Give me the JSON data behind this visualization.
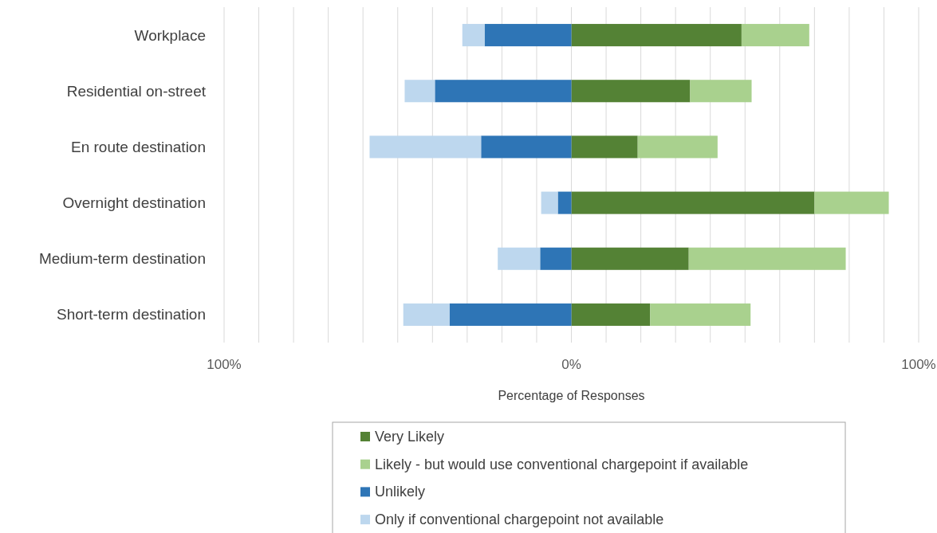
{
  "chart_data": {
    "type": "bar",
    "orientation": "horizontal",
    "stacked": true,
    "xlabel": "Percentage of Responses",
    "categories": [
      "Workplace",
      "Residential on-street",
      "En route destination",
      "Overnight destination",
      "Medium-term destination",
      "Short-term destination"
    ],
    "series": [
      {
        "name": "Very Likely",
        "color": "#548235",
        "values": [
          49,
          34.2,
          19.1,
          70,
          33.8,
          22.7
        ]
      },
      {
        "name": "Likely - but would use conventional chargepoint if available",
        "color": "#a9d18e",
        "values": [
          19.5,
          17.7,
          23,
          21.4,
          45.2,
          28.9
        ]
      },
      {
        "name": "Unlikely",
        "color": "#2e75b6",
        "values": [
          -25,
          -39.3,
          -26,
          -3.9,
          -9,
          -35.1
        ]
      },
      {
        "name": "Only if conventional chargepoint not available",
        "color": "#bdd7ee",
        "values": [
          -6.4,
          -8.7,
          -32.1,
          -4.8,
          -12.2,
          -13.3
        ]
      }
    ],
    "xlim": [
      -100,
      100
    ],
    "xticks": [
      {
        "value": -100,
        "label": "100%"
      },
      {
        "value": -90,
        "label": null
      },
      {
        "value": -80,
        "label": null
      },
      {
        "value": -70,
        "label": null
      },
      {
        "value": -60,
        "label": null
      },
      {
        "value": -50,
        "label": null
      },
      {
        "value": -40,
        "label": null
      },
      {
        "value": -30,
        "label": null
      },
      {
        "value": -20,
        "label": null
      },
      {
        "value": -10,
        "label": null
      },
      {
        "value": 0,
        "label": "0%"
      },
      {
        "value": 10,
        "label": null
      },
      {
        "value": 20,
        "label": null
      },
      {
        "value": 30,
        "label": null
      },
      {
        "value": 40,
        "label": null
      },
      {
        "value": 50,
        "label": null
      },
      {
        "value": 60,
        "label": null
      },
      {
        "value": 70,
        "label": null
      },
      {
        "value": 80,
        "label": null
      },
      {
        "value": 90,
        "label": null
      },
      {
        "value": 100,
        "label": "100%"
      }
    ],
    "grid": "x",
    "legend": "bottom"
  }
}
